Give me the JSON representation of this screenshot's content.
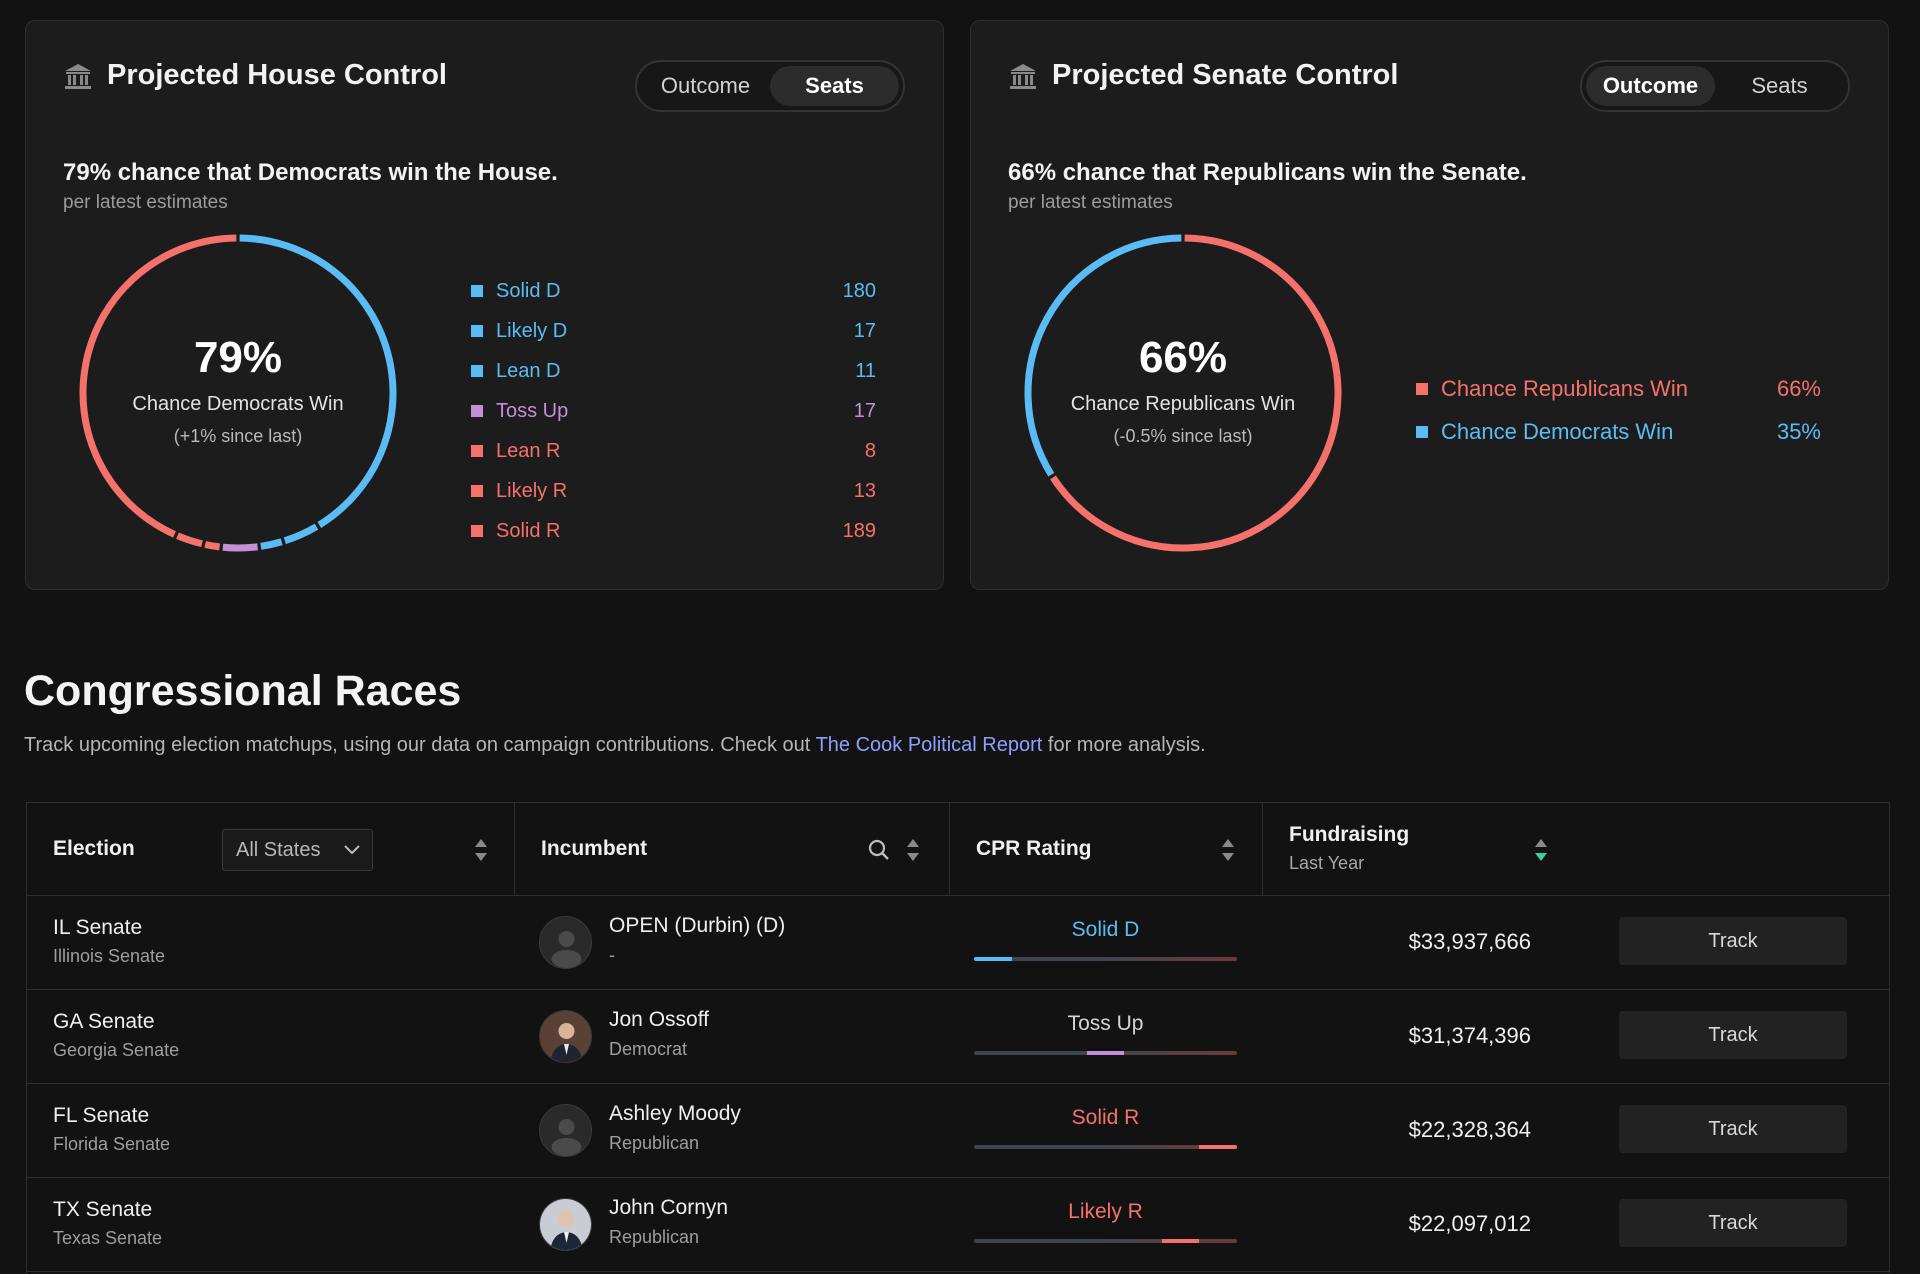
{
  "colors": {
    "dem": "#5bbcf5",
    "rep": "#f4716c",
    "toss": "#c58fd6",
    "track_bg": "#3c4652",
    "track_bg_rep": "#6b3a38"
  },
  "house": {
    "title": "Projected House Control",
    "icon": "capitol-building-icon",
    "toggle": {
      "outcome": "Outcome",
      "seats": "Seats",
      "active": "seats"
    },
    "headline": "79% chance that Democrats win the House.",
    "subline": "per latest estimates",
    "center": {
      "pct": "79%",
      "label": "Chance Democrats Win",
      "change": "(+1% since last)"
    },
    "legend": [
      {
        "label": "Solid D",
        "value": "180",
        "color": "#5bbcf5"
      },
      {
        "label": "Likely D",
        "value": "17",
        "color": "#5bbcf5"
      },
      {
        "label": "Lean D",
        "value": "11",
        "color": "#5bbcf5"
      },
      {
        "label": "Toss Up",
        "value": "17",
        "color": "#c58fd6"
      },
      {
        "label": "Lean R",
        "value": "8",
        "color": "#f4716c"
      },
      {
        "label": "Likely R",
        "value": "13",
        "color": "#f4716c"
      },
      {
        "label": "Solid R",
        "value": "189",
        "color": "#f4716c"
      }
    ]
  },
  "senate": {
    "title": "Projected Senate Control",
    "icon": "capitol-building-icon",
    "toggle": {
      "outcome": "Outcome",
      "seats": "Seats",
      "active": "outcome"
    },
    "headline": "66% chance that Republicans win the Senate.",
    "subline": "per latest estimates",
    "center": {
      "pct": "66%",
      "label": "Chance Republicans Win",
      "change": "(-0.5% since last)"
    },
    "legend": [
      {
        "label": "Chance Republicans Win",
        "value": "66%",
        "color": "#f4716c"
      },
      {
        "label": "Chance Democrats Win",
        "value": "35%",
        "color": "#5bbcf5"
      }
    ]
  },
  "races": {
    "title": "Congressional Races",
    "desc_before": "Track upcoming election matchups, using our data on campaign contributions. Check out ",
    "desc_link": "The Cook Political Report",
    "desc_after": " for more analysis.",
    "columns": {
      "election": "Election",
      "state_filter": "All States",
      "incumbent": "Incumbent",
      "cpr": "CPR Rating",
      "fundraising": "Fundraising",
      "fundraising_sub": "Last Year"
    },
    "rows": [
      {
        "name": "IL Senate",
        "sub": "Illinois Senate",
        "incumbent": "OPEN (Durbin) (D)",
        "party": "-",
        "avatar": "placeholder-avatar-icon",
        "cpr": "Solid D",
        "cpr_color": "#5bbcf5",
        "cpr_pos": 0,
        "fund": "$33,937,666",
        "track": "Track"
      },
      {
        "name": "GA Senate",
        "sub": "Georgia Senate",
        "incumbent": "Jon Ossoff",
        "party": "Democrat",
        "avatar": "portrait-photo-icon",
        "cpr": "Toss Up",
        "cpr_color": "#d6d6d6",
        "cpr_pos": 3,
        "fund": "$31,374,396",
        "track": "Track"
      },
      {
        "name": "FL Senate",
        "sub": "Florida Senate",
        "incumbent": "Ashley Moody",
        "party": "Republican",
        "avatar": "placeholder-avatar-icon",
        "cpr": "Solid R",
        "cpr_color": "#f4716c",
        "cpr_pos": 6,
        "fund": "$22,328,364",
        "track": "Track"
      },
      {
        "name": "TX Senate",
        "sub": "Texas Senate",
        "incumbent": "John Cornyn",
        "party": "Republican",
        "avatar": "portrait-photo-icon",
        "cpr": "Likely R",
        "cpr_color": "#f4716c",
        "cpr_pos": 5,
        "fund": "$22,097,012",
        "track": "Track"
      }
    ]
  }
}
